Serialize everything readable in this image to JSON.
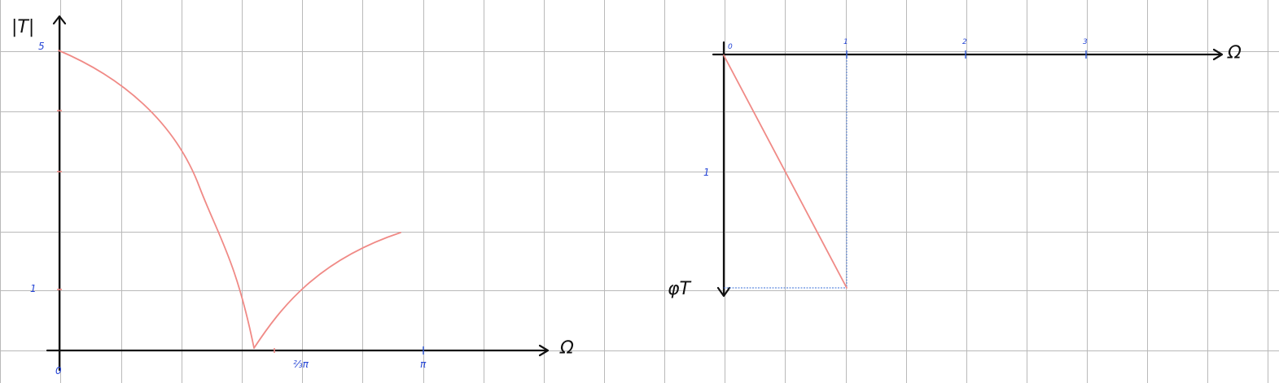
{
  "left_plot": {
    "y_axis_label": "|T|",
    "x_axis_label": "Ω",
    "y_ticks": [
      "5",
      "1"
    ],
    "x_ticks": [
      "0",
      "⅔π",
      "π"
    ]
  },
  "right_plot": {
    "y_axis_label": "φT",
    "x_axis_label": "Ω",
    "x_ticks": [
      "0",
      "1",
      "2",
      "3"
    ],
    "y_ticks": [
      "1"
    ]
  },
  "colors": {
    "curve": "#f08a86",
    "tick_labels": "#2646d6",
    "axes": "#111111",
    "grid": "#b9b9b9"
  }
}
